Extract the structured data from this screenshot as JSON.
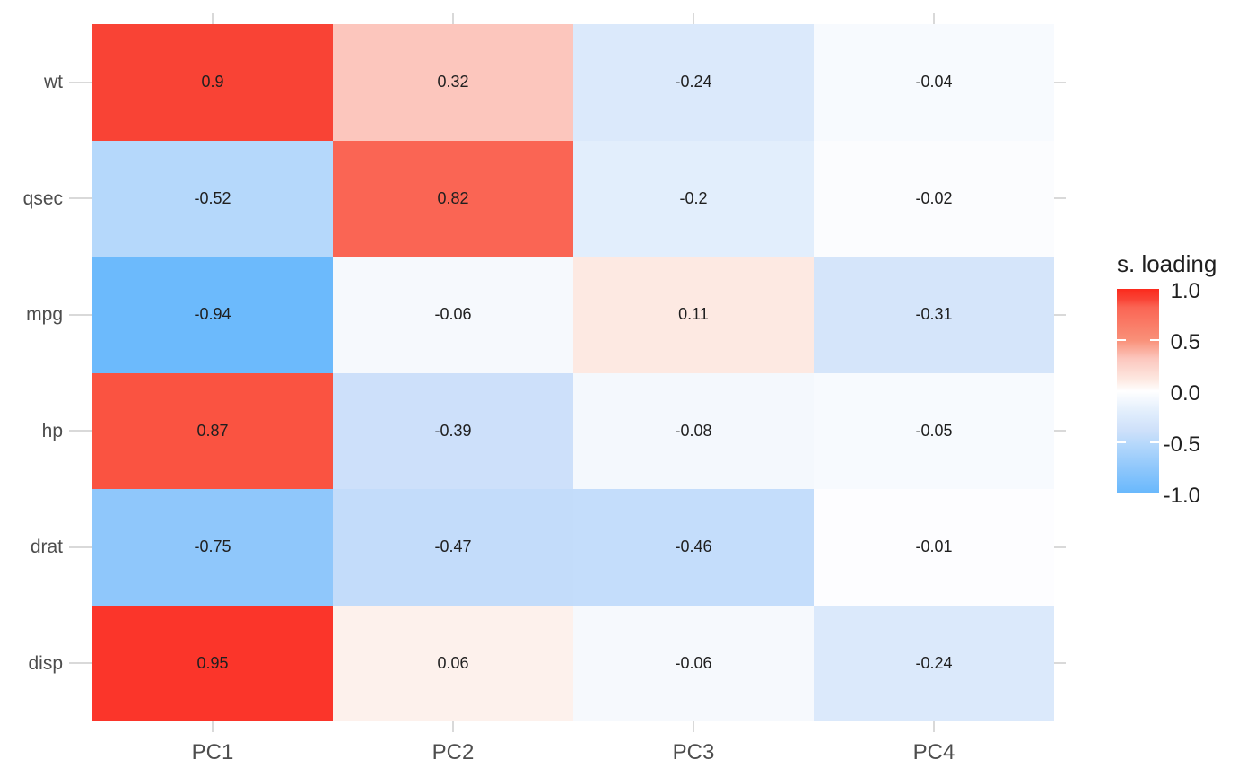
{
  "chart_data": {
    "type": "heatmap",
    "title": "",
    "rows": [
      "wt",
      "qsec",
      "mpg",
      "hp",
      "drat",
      "disp"
    ],
    "columns": [
      "PC1",
      "PC2",
      "PC3",
      "PC4"
    ],
    "values": [
      [
        0.9,
        0.32,
        -0.24,
        -0.04
      ],
      [
        -0.52,
        0.82,
        -0.2,
        -0.02
      ],
      [
        -0.94,
        -0.06,
        0.11,
        -0.31
      ],
      [
        0.87,
        -0.39,
        -0.08,
        -0.05
      ],
      [
        -0.75,
        -0.47,
        -0.46,
        -0.01
      ],
      [
        0.95,
        0.06,
        -0.06,
        -0.24
      ]
    ],
    "value_labels": [
      [
        "0.9",
        "0.32",
        "-0.24",
        "-0.04"
      ],
      [
        "-0.52",
        "0.82",
        "-0.2",
        "-0.02"
      ],
      [
        "-0.94",
        "-0.06",
        "0.11",
        "-0.31"
      ],
      [
        "0.87",
        "-0.39",
        "-0.08",
        "-0.05"
      ],
      [
        "-0.75",
        "-0.47",
        "-0.46",
        "-0.01"
      ],
      [
        "0.95",
        "0.06",
        "-0.06",
        "-0.24"
      ]
    ],
    "cell_colors": [
      [
        "#F94335",
        "#FCC6BD",
        "#DBE9FB",
        "#F7FAFE"
      ],
      [
        "#B5D8FB",
        "#FA6554",
        "#E2EEFC",
        "#FBFCFE"
      ],
      [
        "#6CBAFC",
        "#F6F9FD",
        "#FDE9E2",
        "#D5E5FA"
      ],
      [
        "#FA5341",
        "#CDE0FA",
        "#F4F8FD",
        "#F7FAFE"
      ],
      [
        "#8FC7FB",
        "#C3DCFA",
        "#C4DDFB",
        "#FDFDFF"
      ],
      [
        "#FB352A",
        "#FDF1EC",
        "#F6F9FD",
        "#DBE9FB"
      ]
    ],
    "legend": {
      "title": "s. loading",
      "tick_labels": [
        "1.0",
        "0.5",
        "0.0",
        "-0.5",
        "-1.0"
      ],
      "range": [
        -1.0,
        1.0
      ],
      "high_color": "#FB2A1D",
      "mid_color": "#FFFFFF",
      "low_color": "#68B8FC",
      "gradient_stops": [
        {
          "pos": 0,
          "color": "#FB2A1D"
        },
        {
          "pos": 5,
          "color": "#F94335"
        },
        {
          "pos": 9,
          "color": "#FA6554"
        },
        {
          "pos": 25,
          "color": "#F99078"
        },
        {
          "pos": 34,
          "color": "#FCC6BD"
        },
        {
          "pos": 44.5,
          "color": "#FDE9E2"
        },
        {
          "pos": 50,
          "color": "#FFFFFF"
        },
        {
          "pos": 60,
          "color": "#E2EEFC"
        },
        {
          "pos": 69.5,
          "color": "#CDE0FA"
        },
        {
          "pos": 76,
          "color": "#B5D8FB"
        },
        {
          "pos": 87.5,
          "color": "#8FC7FB"
        },
        {
          "pos": 100,
          "color": "#68B8FC"
        }
      ]
    },
    "axis": {
      "x_tick_color": "#d9d9d9",
      "label_color": "#4d4d4d",
      "grid": false,
      "legend_position": "right"
    }
  }
}
